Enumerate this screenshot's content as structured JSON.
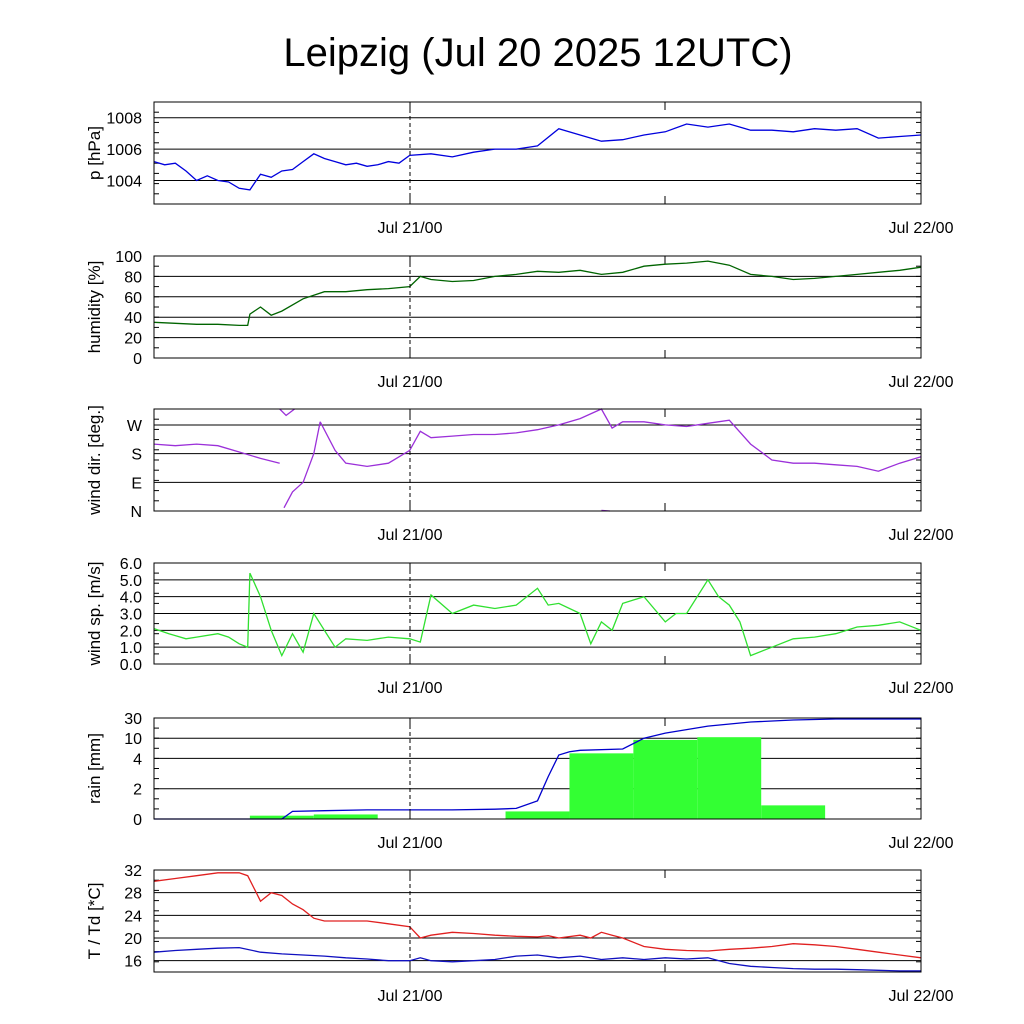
{
  "title": "Leipzig (Jul 20 2025 12UTC)",
  "x_ticks": [
    "Jul 21/00",
    "Jul 22/00"
  ],
  "chart_data": [
    {
      "id": "pressure",
      "type": "line",
      "ylabel": "p [hPa]",
      "ylim": [
        1002.5,
        1009
      ],
      "yticks": [
        {
          "v": 1004,
          "label": "1004"
        },
        {
          "v": 1006,
          "label": "1006"
        },
        {
          "v": 1008,
          "label": "1008"
        }
      ],
      "xlim": [
        0,
        36
      ],
      "series": [
        {
          "color": "#0000dd",
          "x": [
            0,
            0.5,
            1,
            1.5,
            2,
            2.5,
            3,
            3.5,
            4,
            4.5,
            5,
            5.5,
            6,
            6.5,
            7,
            7.5,
            8,
            8.5,
            9,
            9.5,
            10,
            10.5,
            11,
            11.5,
            12,
            13,
            14,
            15,
            16,
            17,
            18,
            19,
            20,
            21,
            22,
            23,
            24,
            25,
            26,
            27,
            28,
            29,
            30,
            31,
            32,
            33,
            34,
            35,
            36
          ],
          "y": [
            1005.2,
            1005,
            1005.1,
            1004.6,
            1004.0,
            1004.3,
            1004.0,
            1003.9,
            1003.5,
            1003.4,
            1004.4,
            1004.2,
            1004.6,
            1004.7,
            1005.2,
            1005.7,
            1005.4,
            1005.2,
            1005.0,
            1005.1,
            1004.9,
            1005.0,
            1005.2,
            1005.1,
            1005.6,
            1005.7,
            1005.5,
            1005.8,
            1006.0,
            1006.0,
            1006.2,
            1007.3,
            1006.9,
            1006.5,
            1006.6,
            1006.9,
            1007.1,
            1007.6,
            1007.4,
            1007.6,
            1007.2,
            1007.2,
            1007.1,
            1007.3,
            1007.2,
            1007.3,
            1006.7,
            1006.8,
            1006.9
          ]
        }
      ]
    },
    {
      "id": "humidity",
      "type": "line",
      "ylabel": "humidity [%]",
      "ylim": [
        0,
        100
      ],
      "yticks": [
        {
          "v": 0,
          "label": "0"
        },
        {
          "v": 20,
          "label": "20"
        },
        {
          "v": 40,
          "label": "40"
        },
        {
          "v": 60,
          "label": "60"
        },
        {
          "v": 80,
          "label": "80"
        },
        {
          "v": 100,
          "label": "100"
        }
      ],
      "xlim": [
        0,
        36
      ],
      "series": [
        {
          "color": "#006400",
          "x": [
            0,
            1,
            2,
            3,
            4,
            4.4,
            4.5,
            5,
            5.5,
            6,
            7,
            8,
            9,
            10,
            11,
            12,
            12.5,
            13,
            14,
            15,
            16,
            17,
            18,
            19,
            20,
            21,
            22,
            23,
            24,
            25,
            26,
            27,
            28,
            29,
            30,
            31,
            32,
            33,
            34,
            35,
            36
          ],
          "y": [
            35,
            34,
            33,
            33,
            32,
            32,
            43,
            50,
            42,
            46,
            58,
            65,
            65,
            67,
            68,
            70,
            80,
            77,
            75,
            76,
            80,
            82,
            85,
            84,
            86,
            82,
            84,
            90,
            92,
            93,
            95,
            91,
            82,
            80,
            77,
            78,
            80,
            82,
            84,
            86,
            89
          ]
        }
      ]
    },
    {
      "id": "wind_dir",
      "type": "line",
      "ylabel": "wind dir. [deg.]",
      "ylim": [
        0,
        320
      ],
      "yticks": [
        {
          "v": 0,
          "label": "N"
        },
        {
          "v": 90,
          "label": "E"
        },
        {
          "v": 180,
          "label": "S"
        },
        {
          "v": 270,
          "label": "W"
        }
      ],
      "xlim": [
        0,
        36
      ],
      "series": [
        {
          "color": "#9b30d9",
          "x": [
            0,
            1,
            2,
            3,
            4,
            5,
            5.9
          ],
          "y": [
            210,
            205,
            210,
            205,
            185,
            165,
            150
          ]
        },
        {
          "color": "#9b30d9",
          "x": [
            5.9,
            6.2,
            6.6
          ],
          "y": [
            330,
            300,
            330
          ]
        },
        {
          "color": "#9b30d9",
          "x": [
            6.1,
            6.5,
            7,
            7.5,
            7.8
          ],
          "y": [
            10,
            60,
            90,
            180,
            280
          ]
        },
        {
          "color": "#9b30d9",
          "x": [
            7.8,
            8.5,
            9,
            10,
            11,
            12,
            12.5,
            13,
            14,
            15,
            16,
            17,
            18,
            19,
            20,
            21,
            21.5,
            22,
            23,
            24,
            25,
            26,
            27,
            28,
            29,
            30,
            31,
            32,
            33,
            34,
            35,
            36
          ],
          "y": [
            280,
            190,
            150,
            140,
            150,
            190,
            250,
            230,
            235,
            240,
            240,
            245,
            255,
            270,
            290,
            330,
            260,
            280,
            280,
            270,
            265,
            275,
            285,
            210,
            160,
            150,
            150,
            145,
            140,
            125,
            150,
            170
          ]
        },
        {
          "color": "#9b30d9",
          "x": [
            21,
            21.4
          ],
          "y": [
            2,
            0
          ]
        }
      ]
    },
    {
      "id": "wind_speed",
      "type": "line",
      "ylabel": "wind sp. [m/s]",
      "ylim": [
        0,
        6
      ],
      "yticks": [
        {
          "v": 0,
          "label": "0.0"
        },
        {
          "v": 1,
          "label": "1.0"
        },
        {
          "v": 2,
          "label": "2.0"
        },
        {
          "v": 3,
          "label": "3.0"
        },
        {
          "v": 4,
          "label": "4.0"
        },
        {
          "v": 5,
          "label": "5.0"
        },
        {
          "v": 6,
          "label": "6.0"
        }
      ],
      "xlim": [
        0,
        36
      ],
      "series": [
        {
          "color": "#30e030",
          "x": [
            0,
            0.7,
            1.5,
            2,
            3,
            3.5,
            4,
            4.4,
            4.5,
            5,
            5.5,
            6,
            6.5,
            7,
            7.5,
            8,
            8.5,
            9,
            10,
            11,
            12,
            12.5,
            13,
            14,
            15,
            16,
            17,
            18,
            18.5,
            19,
            20,
            20.5,
            21,
            21.5,
            22,
            23,
            24,
            24.5,
            25,
            26,
            26.5,
            27,
            27.5,
            28,
            29,
            30,
            31,
            32,
            33,
            34,
            35,
            36
          ],
          "y": [
            2.1,
            1.8,
            1.5,
            1.6,
            1.8,
            1.6,
            1.2,
            1.0,
            5.4,
            4.0,
            2.0,
            0.5,
            1.8,
            0.7,
            3.0,
            2.0,
            1.0,
            1.5,
            1.4,
            1.6,
            1.5,
            1.3,
            4.1,
            3.0,
            3.5,
            3.3,
            3.5,
            4.5,
            3.5,
            3.6,
            3.0,
            1.2,
            2.5,
            2.0,
            3.6,
            4.0,
            2.5,
            3.0,
            3.0,
            5.0,
            4.0,
            3.5,
            2.5,
            0.5,
            1.0,
            1.5,
            1.6,
            1.8,
            2.2,
            2.3,
            2.5,
            2.0
          ]
        }
      ]
    },
    {
      "id": "rain",
      "type": "bar",
      "ylabel": "rain [mm]",
      "ylim": [
        0,
        30
      ],
      "yticks": [
        {
          "v": 0,
          "label": "0"
        },
        {
          "v": 2,
          "label": "2"
        },
        {
          "v": 4,
          "label": "4"
        },
        {
          "v": 10,
          "label": "10"
        },
        {
          "v": 30,
          "label": "30"
        }
      ],
      "xlim": [
        0,
        36
      ],
      "bars": [
        {
          "x0": 4.5,
          "x1": 7.5,
          "v": 0.22
        },
        {
          "x0": 7.5,
          "x1": 10.5,
          "v": 0.3
        },
        {
          "x0": 16.5,
          "x1": 19.5,
          "v": 0.5
        },
        {
          "x0": 19.5,
          "x1": 22.5,
          "v": 5.5
        },
        {
          "x0": 22.5,
          "x1": 25.5,
          "v": 9.5
        },
        {
          "x0": 25.5,
          "x1": 28.5,
          "v": 11
        },
        {
          "x0": 28.5,
          "x1": 31.5,
          "v": 0.9
        }
      ],
      "series": [
        {
          "color": "#0000cc",
          "name": "",
          "x": [
            0,
            6,
            6.5,
            8,
            10,
            12,
            14,
            16,
            17,
            18,
            18.5,
            19,
            19.5,
            20,
            22,
            23,
            24,
            26,
            28,
            30,
            32,
            34,
            36
          ],
          "y": [
            0,
            0,
            0.5,
            0.55,
            0.6,
            0.6,
            0.6,
            0.65,
            0.7,
            1.2,
            2.8,
            5.0,
            6.0,
            6.4,
            6.8,
            10,
            15,
            22,
            26,
            28,
            29,
            29,
            29
          ]
        }
      ]
    },
    {
      "id": "temperature",
      "type": "line",
      "ylabel": "T / Td [*C]",
      "ylim": [
        14,
        32
      ],
      "yticks": [
        {
          "v": 16,
          "label": "16"
        },
        {
          "v": 20,
          "label": "20"
        },
        {
          "v": 24,
          "label": "24"
        },
        {
          "v": 28,
          "label": "28"
        },
        {
          "v": 32,
          "label": "32"
        }
      ],
      "xlim": [
        0,
        36
      ],
      "series": [
        {
          "color": "#e02020",
          "name": "T",
          "x": [
            0,
            1,
            2,
            3,
            4,
            4.4,
            4.8,
            5,
            5.5,
            6,
            6.5,
            7,
            7.5,
            8,
            9,
            10,
            11,
            12,
            12.5,
            13,
            14,
            15,
            16,
            17,
            18,
            18.5,
            19,
            20,
            20.5,
            21,
            21.5,
            22,
            23,
            24,
            25,
            26,
            27,
            28,
            29,
            30,
            31,
            32,
            33,
            34,
            35,
            36
          ],
          "y": [
            30,
            30.5,
            31,
            31.5,
            31.5,
            31,
            28,
            26.5,
            28,
            27.5,
            26,
            25,
            23.5,
            23,
            23,
            23,
            22.5,
            22,
            20,
            20.5,
            21,
            20.8,
            20.5,
            20.3,
            20.2,
            20.4,
            20,
            20.5,
            20,
            21,
            20.5,
            20,
            18.5,
            18,
            17.8,
            17.7,
            18,
            18.2,
            18.5,
            19,
            18.8,
            18.5,
            18,
            17.5,
            17,
            16.5
          ]
        },
        {
          "color": "#1010c0",
          "name": "Td",
          "x": [
            0,
            1,
            2,
            3,
            4,
            5,
            6,
            7,
            8,
            9,
            10,
            11,
            12,
            12.5,
            13,
            14,
            15,
            16,
            17,
            18,
            19,
            20,
            21,
            22,
            23,
            24,
            25,
            26,
            27,
            28,
            29,
            30,
            31,
            32,
            33,
            34,
            35,
            36
          ],
          "y": [
            17.5,
            17.8,
            18,
            18.2,
            18.3,
            17.5,
            17.2,
            17,
            16.8,
            16.5,
            16.3,
            16,
            16,
            16.5,
            16,
            15.8,
            16,
            16.2,
            16.8,
            17,
            16.5,
            16.8,
            16.2,
            16.5,
            16.2,
            16.5,
            16.3,
            16.5,
            15.5,
            15,
            14.8,
            14.6,
            14.5,
            14.5,
            14.4,
            14.3,
            14.2,
            14.2
          ]
        }
      ]
    }
  ]
}
